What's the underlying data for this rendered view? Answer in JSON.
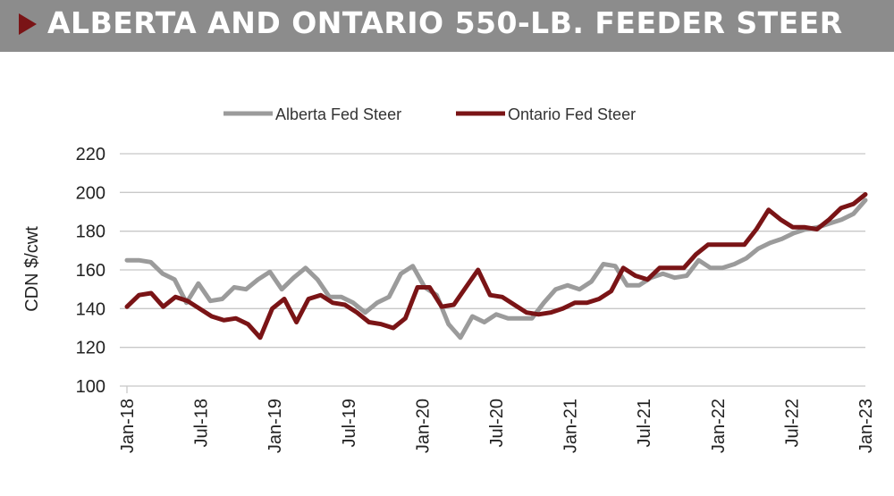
{
  "header": {
    "title": "ALBERTA AND ONTARIO 550-LB. FEEDER STEER"
  },
  "chart_data": {
    "type": "line",
    "title": "ALBERTA AND ONTARIO 550-LB. FEEDER STEER",
    "xlabel": "",
    "ylabel": "CDN $/cwt",
    "ylim": [
      100,
      220
    ],
    "yticks": [
      "100",
      "120",
      "140",
      "160",
      "180",
      "200",
      "220"
    ],
    "xticks": [
      "Jan-18",
      "Jul-18",
      "Jan-19",
      "Jul-19",
      "Jan-20",
      "Jul-20",
      "Jan-21",
      "Jul-21",
      "Jan-22",
      "Jul-22",
      "Jan-23"
    ],
    "legend_position": "top-center",
    "grid": "horizontal",
    "series": [
      {
        "name": "Alberta Fed Steer",
        "color": "#9b9b9b",
        "values": [
          165,
          165,
          164,
          158,
          155,
          143,
          153,
          144,
          145,
          151,
          150,
          155,
          159,
          150,
          156,
          161,
          155,
          146,
          146,
          143,
          138,
          143,
          146,
          158,
          162,
          151,
          147,
          132,
          125,
          136,
          133,
          137,
          135,
          135,
          135,
          143,
          150,
          152,
          150,
          154,
          163,
          162,
          152,
          152,
          156,
          158,
          156,
          157,
          165,
          161,
          161,
          163,
          166,
          171,
          174,
          176,
          179,
          181,
          182,
          184,
          186,
          189,
          196
        ]
      },
      {
        "name": "Ontario Fed Steer",
        "color": "#7a1416",
        "values": [
          141,
          147,
          148,
          141,
          146,
          144,
          140,
          136,
          134,
          135,
          132,
          125,
          140,
          145,
          133,
          145,
          147,
          143,
          142,
          138,
          133,
          132,
          130,
          135,
          151,
          151,
          141,
          142,
          151,
          160,
          147,
          146,
          142,
          138,
          137,
          138,
          140,
          143,
          143,
          145,
          149,
          161,
          157,
          155,
          161,
          161,
          161,
          168,
          173,
          173,
          173,
          173,
          181,
          191,
          186,
          182,
          182,
          181,
          186,
          192,
          194,
          199
        ]
      }
    ]
  }
}
